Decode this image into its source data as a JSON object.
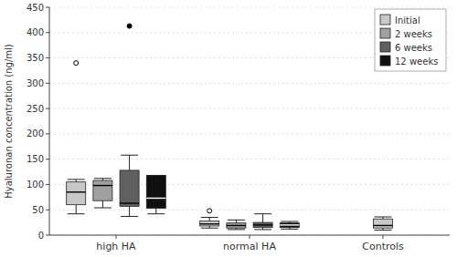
{
  "chart_data": {
    "type": "box",
    "title": "",
    "ylabel": "Hyaluronan concentration (ng/ml)",
    "categories": [
      "high HA",
      "normal HA",
      "Controls"
    ],
    "ylim": [
      0,
      450
    ],
    "yticks": [
      0,
      50,
      100,
      150,
      200,
      250,
      300,
      350,
      400,
      450
    ],
    "grid": true,
    "legend": "upper-right",
    "series": [
      {
        "name": "Initial",
        "color": "#c8c8c8",
        "q1": [
          60,
          18,
          14
        ],
        "median": [
          85,
          22,
          19
        ],
        "q3": [
          105,
          28,
          32
        ],
        "whislo": [
          42,
          14,
          10
        ],
        "whishi": [
          110,
          35,
          36
        ],
        "fliers_open": [
          [
            340
          ],
          [
            48
          ],
          []
        ],
        "fliers_filled": [
          [],
          [],
          []
        ]
      },
      {
        "name": "2 weeks",
        "color": "#a0a0a0",
        "q1": [
          68,
          14,
          null
        ],
        "median": [
          98,
          19,
          null
        ],
        "q3": [
          108,
          24,
          null
        ],
        "whislo": [
          54,
          11,
          null
        ],
        "whishi": [
          112,
          30,
          null
        ],
        "fliers_open": [
          [],
          [],
          null
        ],
        "fliers_filled": [
          [],
          [],
          null
        ]
      },
      {
        "name": "6 weeks",
        "color": "#606060",
        "q1": [
          57,
          15,
          null
        ],
        "median": [
          63,
          20,
          null
        ],
        "q3": [
          128,
          25,
          null
        ],
        "whislo": [
          37,
          11,
          null
        ],
        "whishi": [
          158,
          42,
          null
        ],
        "fliers_open": [
          [],
          [],
          null
        ],
        "fliers_filled": [
          [
            413
          ],
          [],
          null
        ]
      },
      {
        "name": "12 weeks",
        "color": "#101010",
        "q1": [
          53,
          15,
          null
        ],
        "median": [
          73,
          20,
          null
        ],
        "q3": [
          118,
          24,
          null
        ],
        "whislo": [
          42,
          12,
          null
        ],
        "whishi": [
          118,
          27,
          null
        ],
        "fliers_open": [
          [],
          [],
          null
        ],
        "fliers_filled": [
          [],
          [],
          null
        ]
      }
    ]
  }
}
